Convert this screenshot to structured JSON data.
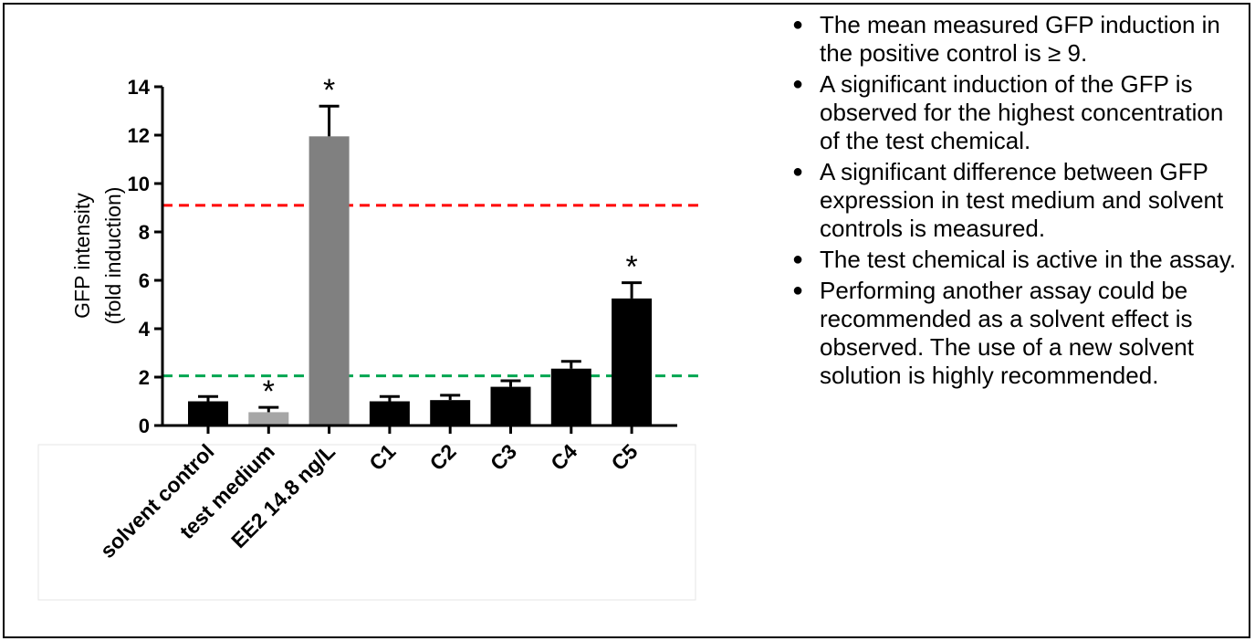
{
  "chart_data": {
    "type": "bar",
    "categories": [
      "solvent control",
      "test medium",
      "EE2 14.8 ng/L",
      "C1",
      "C2",
      "C3",
      "C4",
      "C5"
    ],
    "values": [
      1.0,
      0.55,
      11.95,
      1.0,
      1.05,
      1.6,
      2.35,
      5.25
    ],
    "errors": [
      0.2,
      0.2,
      1.25,
      0.2,
      0.2,
      0.25,
      0.3,
      0.65
    ],
    "significant": [
      false,
      true,
      true,
      false,
      false,
      false,
      false,
      true
    ],
    "significance_marker": "*",
    "bar_colors": [
      "#000000",
      "#a6a6a6",
      "#808080",
      "#000000",
      "#000000",
      "#000000",
      "#000000",
      "#000000"
    ],
    "ylabel": "GFP intensity\n(fold induction)",
    "ylabel_lines": [
      "GFP intensity",
      "(fold induction)"
    ],
    "ylim": [
      0,
      14
    ],
    "yticks": [
      0,
      2,
      4,
      6,
      8,
      10,
      12,
      14
    ],
    "reference_lines": [
      {
        "value": 9.1,
        "color": "#ff0000",
        "style": "dashed"
      },
      {
        "value": 2.05,
        "color": "#00a651",
        "style": "dashed"
      }
    ],
    "grid": false,
    "legend": "none"
  },
  "notes": [
    "The mean measured GFP induction in the positive control is ≥ 9.",
    "A significant induction of the GFP is observed for the highest concentration of the test chemical.",
    "A significant difference between GFP expression in test medium and solvent controls is measured.",
    "The test chemical is active in the assay.",
    "Performing another assay could be recommended as a solvent effect is observed. The use of a new solvent solution is highly recommended."
  ]
}
